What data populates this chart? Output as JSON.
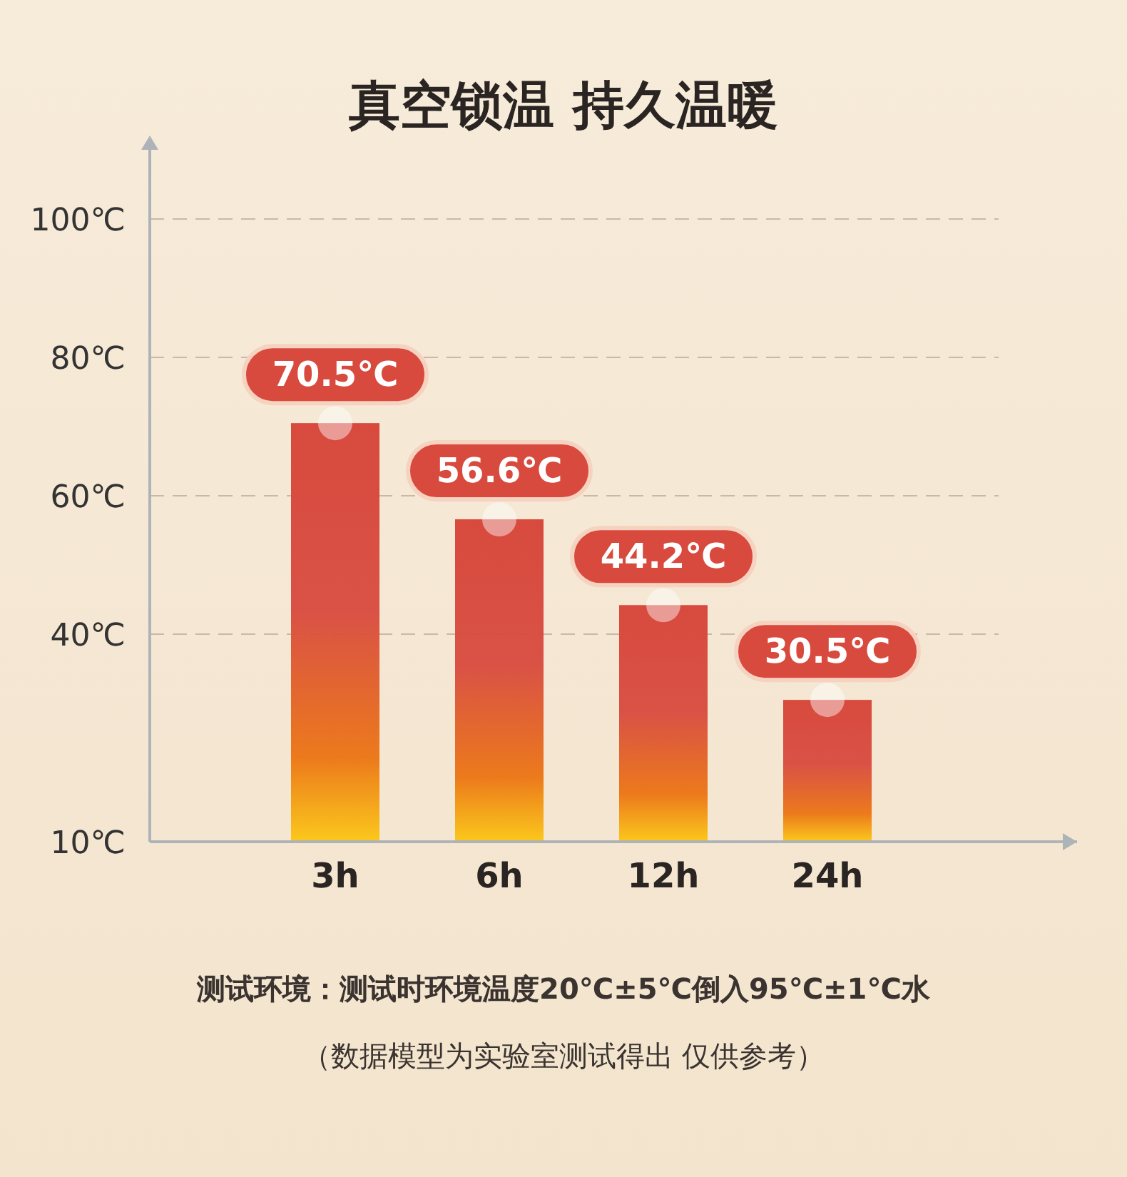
{
  "chart_data": {
    "type": "bar",
    "title": "真空锁温 持久温暖",
    "categories": [
      "3h",
      "6h",
      "12h",
      "24h"
    ],
    "series": [
      {
        "color": "#d84a3e",
        "values": [
          70.5,
          56.6,
          44.2,
          30.5
        ],
        "value_labels": [
          "70.5℃",
          "56.6℃",
          "44.2℃",
          "30.5℃"
        ]
      }
    ],
    "ylim": [
      10,
      110
    ],
    "yticks": [
      {
        "value": 10,
        "label": "10℃"
      },
      {
        "value": 40,
        "label": "40℃"
      },
      {
        "value": 60,
        "label": "60℃"
      },
      {
        "value": 80,
        "label": "80℃"
      },
      {
        "value": 100,
        "label": "100℃"
      }
    ],
    "grid": "y",
    "annotations": [
      "测试环境：测试时环境温度20℃±5℃倒入95℃±1℃水",
      "（数据模型为实验室测试得出 仅供参考）"
    ]
  }
}
